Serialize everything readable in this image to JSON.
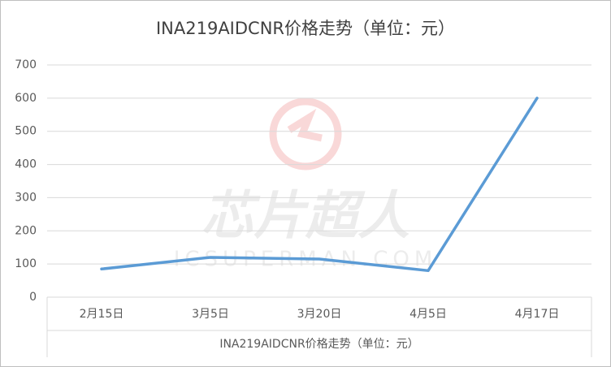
{
  "chart_data": {
    "type": "line",
    "title": "INA219AIDCNR价格走势（单位：元）",
    "x_label": "INA219AIDCNR价格走势（单位：元）",
    "watermark": "芯片超人",
    "watermark_sub": "ICSUPERMAN.COM",
    "categories": [
      "2月15日",
      "3月5日",
      "3月20日",
      "4月5日",
      "4月17日"
    ],
    "series": [
      {
        "name": "INA219AIDCNR",
        "color": "#5b9bd5",
        "values": [
          85,
          120,
          115,
          80,
          600
        ]
      }
    ],
    "ylim": [
      0,
      700
    ],
    "yticks": [
      0,
      100,
      200,
      300,
      400,
      500,
      600,
      700
    ],
    "grid": true
  }
}
